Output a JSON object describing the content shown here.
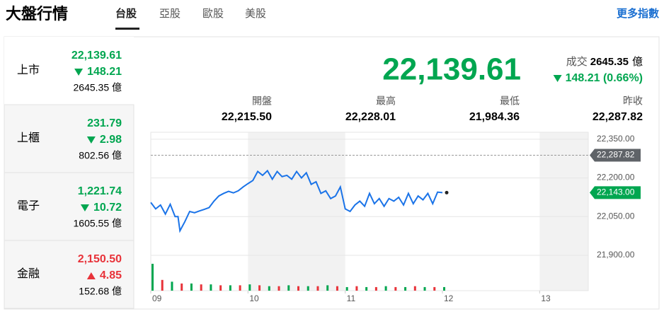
{
  "header": {
    "title": "大盤行情",
    "tabs": [
      "台股",
      "亞股",
      "歐股",
      "美股"
    ],
    "active_tab": 0,
    "more": "更多指數"
  },
  "indices": [
    {
      "name": "上市",
      "price": "22,139.61",
      "change": "148.21",
      "volume": "2645.35 億",
      "direction": "down"
    },
    {
      "name": "上櫃",
      "price": "231.79",
      "change": "2.98",
      "volume": "802.56 億",
      "direction": "down"
    },
    {
      "name": "電子",
      "price": "1,221.74",
      "change": "10.72",
      "volume": "1605.55 億",
      "direction": "down"
    },
    {
      "name": "金融",
      "price": "2,150.50",
      "change": "4.85",
      "volume": "152.68 億",
      "direction": "up"
    }
  ],
  "quote": {
    "price": "22,139.61",
    "volume_label": "成交",
    "volume": "2645.35",
    "volume_unit": "億",
    "change": "148.21 (0.66%)",
    "direction": "down",
    "stats": [
      {
        "label": "開盤",
        "value": "22,215.50"
      },
      {
        "label": "最高",
        "value": "22,228.01"
      },
      {
        "label": "最低",
        "value": "21,984.36"
      },
      {
        "label": "昨收",
        "value": "22,287.82"
      }
    ]
  },
  "chart_data": {
    "type": "line",
    "color": "#1a73e8",
    "up_color": "#e8333a",
    "down_color": "#00a650",
    "x": [
      9.0,
      9.05,
      9.1,
      9.15,
      9.2,
      9.25,
      9.28,
      9.3,
      9.35,
      9.4,
      9.45,
      9.5,
      9.55,
      9.6,
      9.65,
      9.7,
      9.75,
      9.8,
      9.85,
      9.9,
      9.95,
      10.0,
      10.05,
      10.1,
      10.15,
      10.2,
      10.25,
      10.3,
      10.35,
      10.4,
      10.45,
      10.5,
      10.55,
      10.6,
      10.65,
      10.7,
      10.75,
      10.8,
      10.85,
      10.9,
      10.95,
      11.0,
      11.05,
      11.1,
      11.15,
      11.2,
      11.25,
      11.3,
      11.35,
      11.4,
      11.45,
      11.5,
      11.55,
      11.6,
      11.65,
      11.7,
      11.75,
      11.8,
      11.85,
      11.9,
      11.95,
      12.0
    ],
    "values": [
      22105,
      22080,
      22095,
      22060,
      22098,
      22050,
      22050,
      21995,
      22030,
      22070,
      22065,
      22072,
      22078,
      22085,
      22110,
      22130,
      22140,
      22148,
      22142,
      22150,
      22165,
      22178,
      22190,
      22225,
      22210,
      22228,
      22195,
      22225,
      22205,
      22210,
      22195,
      22225,
      22200,
      22220,
      22175,
      22185,
      22140,
      22150,
      22120,
      22130,
      22165,
      22080,
      22070,
      22095,
      22110,
      22090,
      22140,
      22100,
      22120,
      22090,
      22120,
      22110,
      22125,
      22095,
      22140,
      22100,
      22130,
      22115,
      22140,
      22100,
      22145,
      22143
    ],
    "xlim": [
      9,
      13.5
    ],
    "xticks": [
      {
        "value": 9,
        "label": "09"
      },
      {
        "value": 10,
        "label": "10"
      },
      {
        "value": 11,
        "label": "11"
      },
      {
        "value": 12,
        "label": "12"
      },
      {
        "value": 13,
        "label": "13"
      }
    ],
    "ylim": [
      21763,
      22377
    ],
    "yticks": [
      {
        "value": 22350,
        "label": "22,350.00"
      },
      {
        "value": 22200,
        "label": "22,200.00"
      },
      {
        "value": 22050,
        "label": "22,050.00"
      },
      {
        "value": 21900,
        "label": "21,900.00"
      }
    ],
    "prev_close": {
      "value": 22287.82,
      "label": "22,287.82"
    },
    "last": {
      "value": 22143,
      "label": "22,143.00"
    },
    "volume": {
      "x": [
        9.0,
        9.1,
        9.2,
        9.3,
        9.4,
        9.5,
        9.6,
        9.7,
        9.8,
        9.9,
        10.0,
        10.1,
        10.2,
        10.3,
        10.4,
        10.5,
        10.6,
        10.7,
        10.8,
        10.9,
        11.0,
        11.1,
        11.2,
        11.3,
        11.4,
        11.5,
        11.6,
        11.7,
        11.8,
        11.9,
        12.0
      ],
      "values": [
        30,
        12,
        10,
        8,
        8,
        7,
        7,
        6,
        6,
        6,
        7,
        6,
        5,
        5,
        6,
        5,
        5,
        5,
        6,
        5,
        4,
        5,
        4,
        4,
        5,
        4,
        4,
        5,
        4,
        4,
        4
      ],
      "vlim": [
        0,
        30
      ],
      "colors": [
        "#00a650",
        "#e8333a"
      ]
    }
  }
}
